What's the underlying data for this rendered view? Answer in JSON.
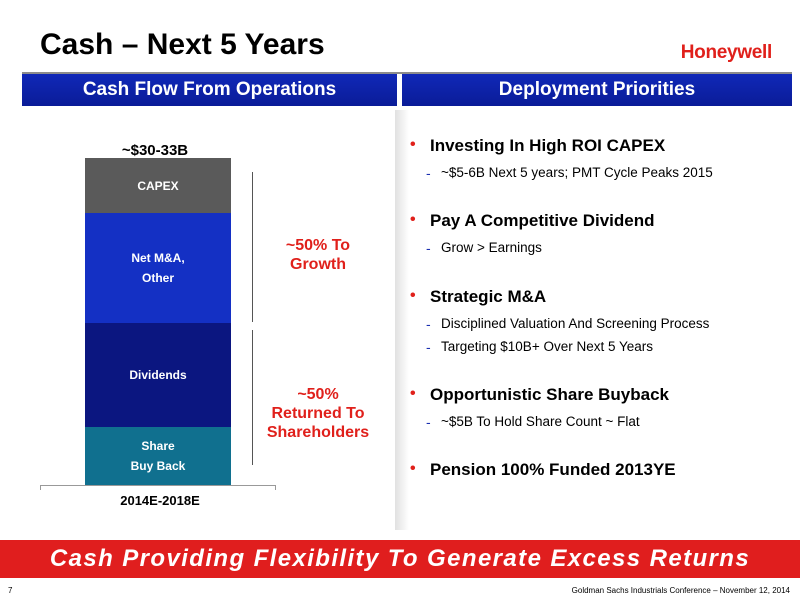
{
  "slide": {
    "title": "Cash – Next 5 Years",
    "logo": "Honeywell"
  },
  "left_panel": {
    "header": "Cash Flow From Operations",
    "chart_data": {
      "type": "bar",
      "stacked": true,
      "categories": [
        "2014E-2018E"
      ],
      "total_label": "~$30-33B",
      "segments_bottom_to_top": [
        {
          "name": "Share Buy Back",
          "line1": "Share",
          "line2": "Buy Back",
          "color": "#10708f"
        },
        {
          "name": "Dividends",
          "line1": "Dividends",
          "line2": "",
          "color": "#0b1680"
        },
        {
          "name": "Net M&A, Other",
          "line1": "Net M&A,",
          "line2": "Other",
          "color": "#1430c4"
        },
        {
          "name": "CAPEX",
          "line1": "CAPEX",
          "line2": "",
          "color": "#5a5a5a"
        }
      ],
      "brackets": [
        {
          "line1": "~50% To",
          "line2": "Growth",
          "line3": ""
        },
        {
          "line1": "~50%",
          "line2": "Returned To",
          "line3": "Shareholders"
        }
      ]
    }
  },
  "right_panel": {
    "header": "Deployment Priorities",
    "bullets": [
      {
        "text": "Investing In High ROI CAPEX",
        "subs": [
          "~$5-6B Next 5 years; PMT Cycle Peaks 2015"
        ]
      },
      {
        "text": "Pay A Competitive Dividend",
        "subs": [
          "Grow > Earnings"
        ]
      },
      {
        "text": "Strategic M&A",
        "subs": [
          "Disciplined Valuation And Screening Process",
          "Targeting $10B+ Over Next 5 Years"
        ]
      },
      {
        "text": "Opportunistic Share Buyback",
        "subs": [
          "~$5B To Hold Share Count ~ Flat"
        ]
      },
      {
        "text": "Pension 100% Funded 2013YE",
        "subs": []
      }
    ]
  },
  "banner": "Cash Providing Flexibility To Generate Excess Returns",
  "footer": {
    "page_number": "7",
    "conference": "Goldman Sachs Industrials Conference – November 12, 2014"
  }
}
